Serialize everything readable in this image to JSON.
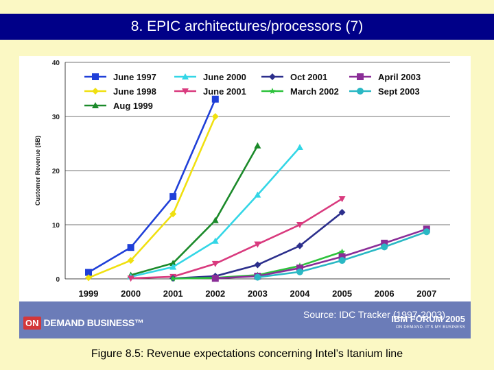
{
  "slide": {
    "title": "8. EPIC architectures/processors (7)",
    "caption": "Figure 8.5: Revenue expectations concerning Intel’s Itanium line"
  },
  "banner": {
    "on_badge": "ON",
    "on_demand_text": "DEMAND BUSINESS™",
    "source": "Source: IDC Tracker (1997-2003)",
    "forum_title": "IBM FORUM 2005",
    "forum_tagline": "ON DEMAND. IT'S MY BUSINESS"
  },
  "colors": {
    "title_bar": "#000088",
    "background": "#fbf8c4",
    "banner": "#6b7cb8"
  },
  "chart_data": {
    "type": "line",
    "title": "",
    "xlabel": "",
    "ylabel": "Customer Revenue ($B)",
    "categories": [
      "1999",
      "2000",
      "2001",
      "2002",
      "2003",
      "2004",
      "2005",
      "2006",
      "2007"
    ],
    "ylim": [
      0,
      40
    ],
    "yticks": [
      0,
      10,
      20,
      30,
      40
    ],
    "grid": true,
    "legend_position": "top",
    "series": [
      {
        "name": "June 1997",
        "color": "#1f3fd8",
        "marker": "square",
        "values": [
          1.2,
          5.8,
          15.2,
          33.2,
          null,
          null,
          null,
          null,
          null
        ]
      },
      {
        "name": "June 1998",
        "color": "#f0e010",
        "marker": "diamond",
        "values": [
          0.2,
          3.4,
          12.0,
          30.0,
          null,
          null,
          null,
          null,
          null
        ]
      },
      {
        "name": "Aug 1999",
        "color": "#1b8a2a",
        "marker": "triangle-up",
        "values": [
          null,
          0.7,
          2.9,
          10.8,
          24.6,
          null,
          null,
          null,
          null
        ]
      },
      {
        "name": "June 2000",
        "color": "#33d6e6",
        "marker": "triangle-up",
        "values": [
          null,
          0.4,
          2.2,
          7.0,
          15.5,
          24.3,
          null,
          null,
          null
        ]
      },
      {
        "name": "June 2001",
        "color": "#d93a7e",
        "marker": "triangle-down",
        "values": [
          null,
          0.1,
          0.4,
          2.8,
          6.4,
          10.0,
          14.8,
          null,
          null
        ]
      },
      {
        "name": "Oct 2001",
        "color": "#2c2f8c",
        "marker": "diamond",
        "values": [
          null,
          null,
          0.1,
          0.5,
          2.6,
          6.1,
          12.3,
          null,
          null
        ]
      },
      {
        "name": "March 2002",
        "color": "#2dc23c",
        "marker": "star",
        "values": [
          null,
          null,
          0.05,
          0.2,
          0.7,
          2.4,
          5.0,
          null,
          null
        ]
      },
      {
        "name": "April 2003",
        "color": "#8a2d97",
        "marker": "square",
        "values": [
          null,
          null,
          null,
          0.1,
          0.5,
          2.0,
          4.1,
          6.6,
          9.2
        ]
      },
      {
        "name": "Sept 2003",
        "color": "#2ab8c4",
        "marker": "circle",
        "values": [
          null,
          null,
          null,
          null,
          0.3,
          1.3,
          3.4,
          5.9,
          8.7
        ]
      }
    ]
  }
}
